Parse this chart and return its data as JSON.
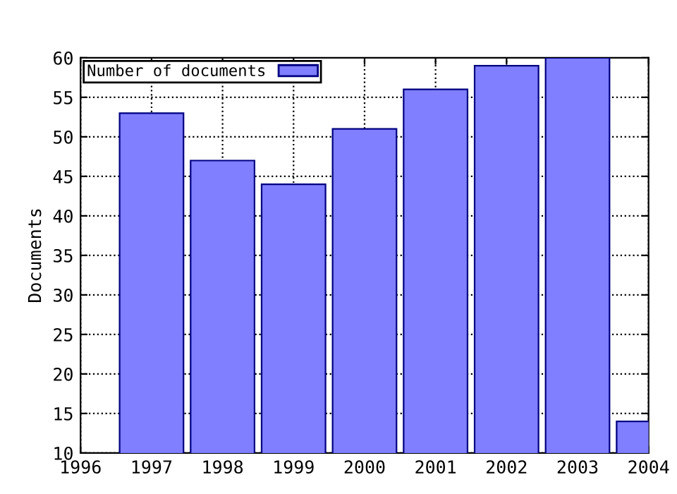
{
  "chart_data": {
    "type": "bar",
    "ylabel": "Documents",
    "x": [
      1997,
      1998,
      1999,
      2000,
      2001,
      2002,
      2003,
      2004
    ],
    "series": [
      {
        "name": "Number of documents",
        "color": "#7f7fff",
        "values": [
          53,
          47,
          44,
          51,
          56,
          59,
          60,
          14
        ]
      }
    ],
    "xlim": [
      1996,
      2004
    ],
    "xticks": [
      1996,
      1997,
      1998,
      1999,
      2000,
      2001,
      2002,
      2003,
      2004
    ],
    "ylim": [
      10,
      60
    ],
    "yticks": [
      10,
      15,
      20,
      25,
      30,
      35,
      40,
      45,
      50,
      55,
      60
    ],
    "grid": true,
    "legend": "top left"
  }
}
